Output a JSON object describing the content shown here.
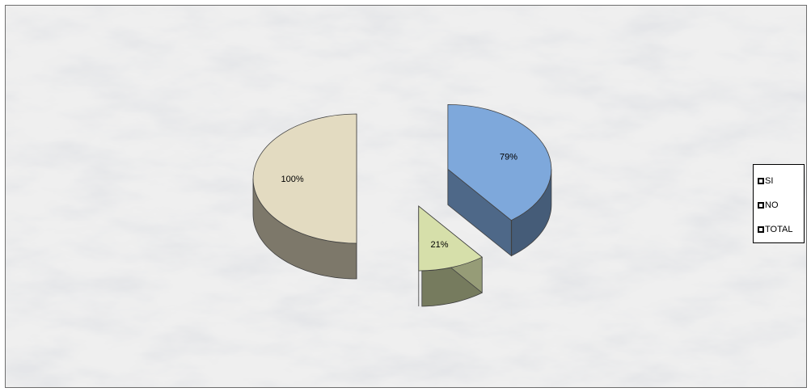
{
  "chart_data": {
    "type": "pie",
    "style": "3d-exploded",
    "categories": [
      "SI",
      "NO",
      "TOTAL"
    ],
    "values": [
      79,
      21,
      100
    ],
    "data_labels": [
      "79%",
      "21%",
      "100%"
    ],
    "colors": {
      "SI": "#7ea8db",
      "NO": "#d6dfaa",
      "TOTAL": "#e3dbc1"
    },
    "legend_position": "right",
    "background": "white marble texture"
  }
}
